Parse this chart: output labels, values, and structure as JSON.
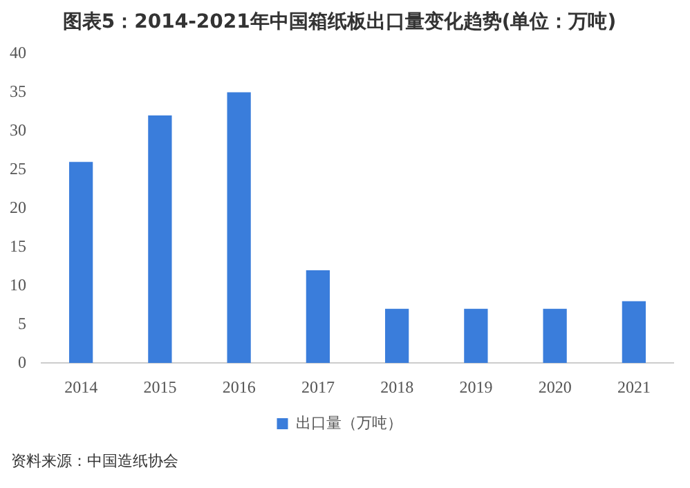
{
  "chart_data": {
    "type": "bar",
    "title": "图表5：2014-2021年中国箱纸板出口量变化趋势(单位：万吨)",
    "categories": [
      "2014",
      "2015",
      "2016",
      "2017",
      "2018",
      "2019",
      "2020",
      "2021"
    ],
    "series": [
      {
        "name": "出口量（万吨）",
        "color": "#3a7ddb",
        "values": [
          26,
          32,
          35,
          12,
          7,
          7,
          7,
          8
        ]
      }
    ],
    "ylim": [
      0,
      40
    ],
    "yticks": [
      0,
      5,
      10,
      15,
      20,
      25,
      30,
      35,
      40
    ],
    "grid": false,
    "legend": "bottom",
    "annotations": [
      "资料来源：中国造纸协会"
    ]
  }
}
